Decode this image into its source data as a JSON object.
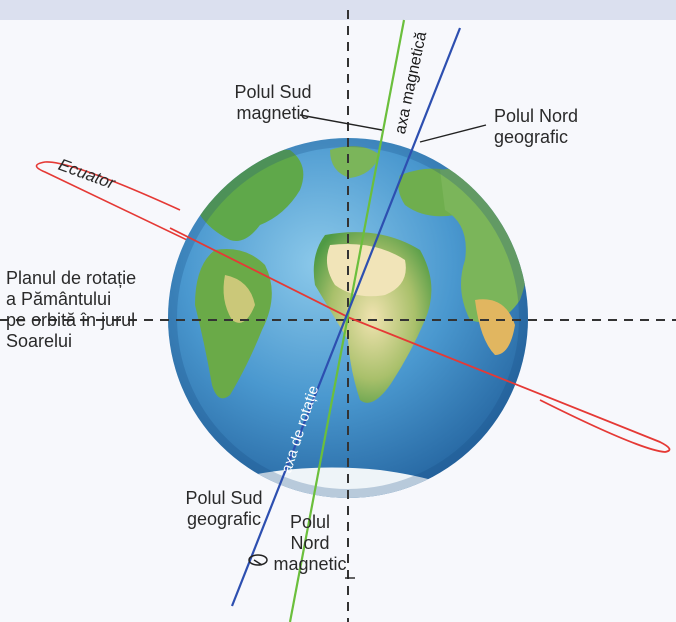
{
  "labels": {
    "polul_sud_magnetic": "Polul Sud\nmagnetic",
    "polul_nord_geografic": "Polul Nord\ngeografic",
    "ecuator": "Ecuator",
    "planul_rotatie": "Planul de rotație\na Pământului\npe orbită în jurul\nSoarelui",
    "axa_magnetica": "axa magnetică",
    "axa_rotatie": "axa de rotație",
    "polul_sud_geografic": "Polul Sud\ngeografic",
    "polul_nord_magnetic": "Polul\nNord\nmagnetic"
  },
  "colors": {
    "ocean": "#3f8fc8",
    "ocean_dark": "#1f5e9a",
    "land_green": "#5fa84a",
    "land_sand": "#e9d69a",
    "equator": "#e53935",
    "magnetic_axis": "#6bbf3c",
    "rotation_axis": "#2d4fb0",
    "dashed": "#333333",
    "text": "#2a2a2a"
  }
}
